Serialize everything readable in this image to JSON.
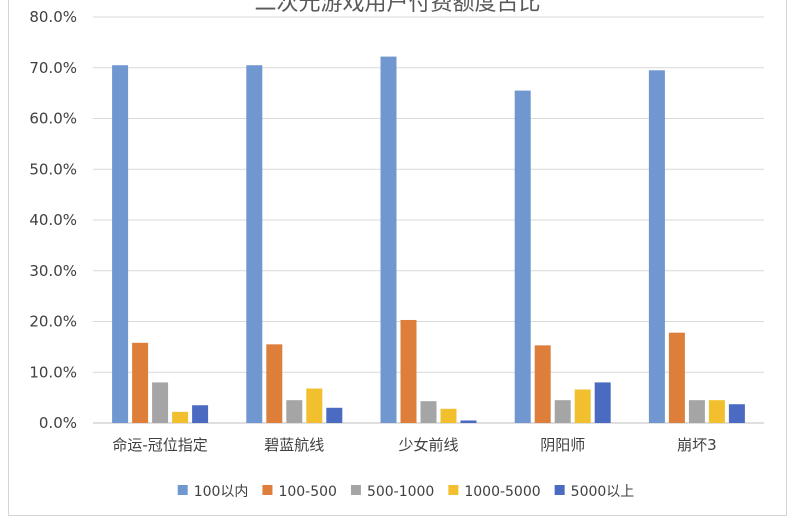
{
  "chart_data": {
    "type": "bar",
    "title": "二次元游戏用户付费额度占比",
    "categories": [
      "命运-冠位指定",
      "碧蓝航线",
      "少女前线",
      "阴阳师",
      "崩坏3"
    ],
    "series": [
      {
        "name": "100以内",
        "color": "#7097cf",
        "values": [
          70.5,
          70.5,
          72.2,
          65.5,
          69.5
        ]
      },
      {
        "name": "100-500",
        "color": "#dd7f3b",
        "values": [
          15.8,
          15.5,
          20.3,
          15.3,
          17.8
        ]
      },
      {
        "name": "500-1000",
        "color": "#a5a5a5",
        "values": [
          8.0,
          4.5,
          4.3,
          4.5,
          4.5
        ]
      },
      {
        "name": "1000-5000",
        "color": "#f2c02f",
        "values": [
          2.2,
          6.8,
          2.8,
          6.6,
          4.5
        ]
      },
      {
        "name": "5000以上",
        "color": "#4b6bc2",
        "values": [
          3.5,
          3.0,
          0.5,
          8.0,
          3.7
        ]
      }
    ],
    "yticks": [
      "0.0%",
      "10.0%",
      "20.0%",
      "30.0%",
      "40.0%",
      "50.0%",
      "60.0%",
      "70.0%",
      "80.0%"
    ],
    "ylim": [
      0,
      80
    ],
    "grid": true,
    "legend_position": "bottom"
  }
}
